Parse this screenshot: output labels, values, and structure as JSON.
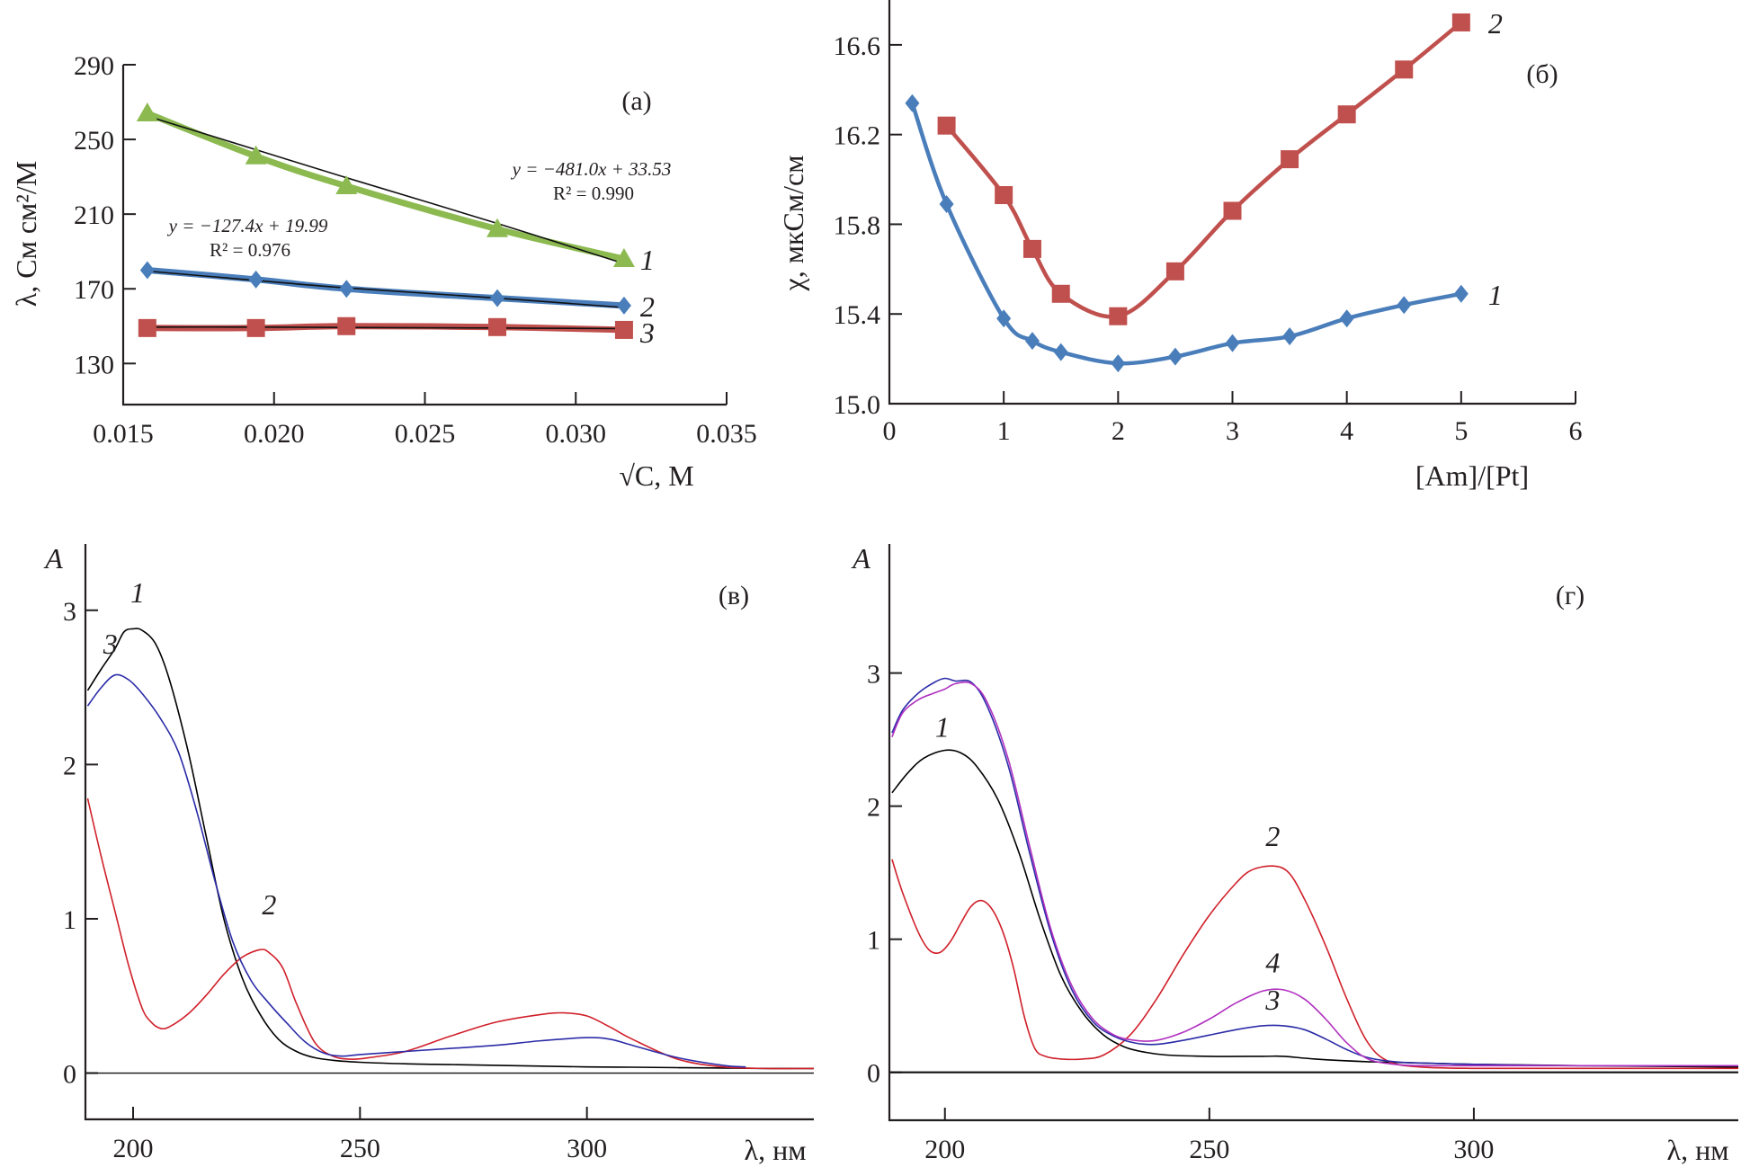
{
  "chart_data": [
    {
      "id": "a",
      "type": "line",
      "panel_label": "(а)",
      "xlabel": "√C, М",
      "ylabel": "λ, См см²/М",
      "xlim": [
        0.015,
        0.035
      ],
      "ylim": [
        108,
        290
      ],
      "xticks": [
        0.015,
        0.02,
        0.025,
        0.03,
        0.035
      ],
      "xtick_labels": [
        "0.015",
        "0.020",
        "0.025",
        "0.030",
        "0.035"
      ],
      "yticks": [
        130,
        170,
        210,
        250,
        290
      ],
      "ytick_labels": [
        "130",
        "170",
        "210",
        "250",
        "290"
      ],
      "x": [
        0.0158,
        0.0194,
        0.0224,
        0.0274,
        0.0316
      ],
      "series": [
        {
          "name": "1",
          "marker": "triangle",
          "color": "#8cba50",
          "values": [
            264,
            241,
            225,
            202,
            186
          ],
          "trend": [
            262.5,
            244.5,
            229.5,
            205,
            183.5
          ]
        },
        {
          "name": "2",
          "marker": "diamond",
          "color": "#4a7ebb",
          "values": [
            180,
            175,
            170,
            165,
            161
          ],
          "trend": [
            179.5,
            174.5,
            170.5,
            165,
            160
          ]
        },
        {
          "name": "3",
          "marker": "square",
          "color": "#c0504d",
          "values": [
            149,
            149,
            150,
            149.5,
            148
          ],
          "trend": [
            149.5,
            149.5,
            149.3,
            149,
            148.7
          ]
        }
      ],
      "annotations": [
        {
          "line1": "y = −481.0x + 33.53",
          "line2": "R² = 0.990"
        },
        {
          "line1": "y = −127.4x + 19.99",
          "line2": "R² = 0.976"
        }
      ],
      "grid": false
    },
    {
      "id": "b",
      "type": "line",
      "panel_label": "(б)",
      "xlabel": "[Am]/[Pt]",
      "ylabel": "χ, мкСм/см",
      "xlim": [
        0,
        6
      ],
      "ylim": [
        15.0,
        16.8
      ],
      "xticks": [
        0,
        1,
        2,
        3,
        4,
        5,
        6
      ],
      "xtick_labels": [
        "0",
        "1",
        "2",
        "3",
        "4",
        "5",
        "6"
      ],
      "yticks": [
        15.0,
        15.4,
        15.8,
        16.2,
        16.6
      ],
      "ytick_labels": [
        "15.0",
        "15.4",
        "15.8",
        "16.2",
        "16.6"
      ],
      "series": [
        {
          "name": "1",
          "marker": "diamond",
          "color": "#4a7ebb",
          "x": [
            0.2,
            0.5,
            1,
            1.25,
            1.5,
            2,
            2.5,
            3,
            3.5,
            4,
            4.5,
            5
          ],
          "values": [
            16.34,
            15.89,
            15.38,
            15.28,
            15.23,
            15.18,
            15.21,
            15.27,
            15.3,
            15.38,
            15.44,
            15.49
          ]
        },
        {
          "name": "2",
          "marker": "square",
          "color": "#c0504d",
          "x": [
            0.5,
            1,
            1.25,
            1.5,
            2,
            2.5,
            3,
            3.5,
            4,
            4.5,
            5
          ],
          "values": [
            16.24,
            15.93,
            15.69,
            15.49,
            15.39,
            15.59,
            15.86,
            16.09,
            16.29,
            16.49,
            16.7
          ]
        }
      ],
      "grid": false
    },
    {
      "id": "c",
      "type": "line",
      "panel_label": "(в)",
      "xlabel": "λ, нм",
      "ylabel": "A",
      "xlim": [
        189.5,
        350
      ],
      "ylim": [
        -0.3,
        3.43
      ],
      "xticks": [
        200,
        250,
        300
      ],
      "xtick_labels": [
        "200",
        "250",
        "300"
      ],
      "yticks": [
        0,
        1,
        2,
        3
      ],
      "ytick_labels": [
        "0",
        "1",
        "2",
        "3"
      ],
      "series": [
        {
          "name": "1",
          "color": "#000000",
          "x": [
            190,
            193,
            196,
            198,
            200,
            202,
            205,
            208,
            212,
            216,
            220,
            224,
            228,
            232,
            236,
            240,
            245,
            250,
            260,
            270,
            280,
            290,
            300,
            310,
            320,
            330,
            340,
            350
          ],
          "values": [
            2.48,
            2.62,
            2.75,
            2.86,
            2.88,
            2.87,
            2.78,
            2.55,
            2.1,
            1.55,
            1.0,
            0.62,
            0.38,
            0.22,
            0.14,
            0.1,
            0.08,
            0.07,
            0.06,
            0.055,
            0.05,
            0.045,
            0.04,
            0.038,
            0.035,
            0.033,
            0.03,
            0.03
          ]
        },
        {
          "name": "2",
          "color": "#d0202a",
          "x": [
            190,
            193,
            196,
            199,
            202,
            204,
            206,
            208,
            212,
            216,
            220,
            224,
            228,
            230,
            233,
            236,
            240,
            244,
            248,
            252,
            260,
            270,
            280,
            290,
            295,
            300,
            305,
            310,
            320,
            330,
            340,
            350
          ],
          "values": [
            1.78,
            1.4,
            1.05,
            0.7,
            0.42,
            0.33,
            0.29,
            0.3,
            0.38,
            0.5,
            0.64,
            0.75,
            0.8,
            0.78,
            0.68,
            0.45,
            0.2,
            0.11,
            0.09,
            0.1,
            0.14,
            0.24,
            0.33,
            0.38,
            0.39,
            0.37,
            0.3,
            0.22,
            0.09,
            0.04,
            0.03,
            0.03
          ]
        },
        {
          "name": "3",
          "color": "#2b2ba8",
          "x": [
            190,
            193,
            196,
            199,
            202,
            206,
            210,
            214,
            218,
            222,
            226,
            230,
            234,
            238,
            242,
            246,
            250,
            260,
            270,
            280,
            290,
            300,
            305,
            310,
            320,
            330,
            335
          ],
          "values": [
            2.38,
            2.5,
            2.58,
            2.55,
            2.46,
            2.3,
            2.08,
            1.7,
            1.25,
            0.85,
            0.6,
            0.45,
            0.32,
            0.2,
            0.13,
            0.11,
            0.12,
            0.14,
            0.16,
            0.18,
            0.21,
            0.23,
            0.22,
            0.18,
            0.1,
            0.05,
            0.04
          ]
        }
      ],
      "curve_labels": [
        {
          "series": "1",
          "text": "1",
          "x": 201,
          "y": 3.05
        },
        {
          "series": "3",
          "text": "3",
          "x": 195,
          "y": 2.72
        },
        {
          "series": "2",
          "text": "2",
          "x": 230,
          "y": 1.03
        }
      ],
      "baseline": 0,
      "grid": false
    },
    {
      "id": "d",
      "type": "line",
      "panel_label": "(г)",
      "xlabel": "λ, нм",
      "ylabel": "A",
      "xlim": [
        189.5,
        350
      ],
      "ylim": [
        -0.36,
        3.97
      ],
      "xticks": [
        200,
        250,
        300
      ],
      "xtick_labels": [
        "200",
        "250",
        "300"
      ],
      "yticks": [
        0,
        1,
        2,
        3
      ],
      "ytick_labels": [
        "0",
        "1",
        "2",
        "3"
      ],
      "series": [
        {
          "name": "1",
          "color": "#000000",
          "x": [
            190,
            193,
            196,
            200,
            203,
            206,
            210,
            214,
            218,
            222,
            226,
            230,
            234,
            238,
            242,
            250,
            260,
            264,
            270,
            280,
            290,
            300,
            320,
            350
          ],
          "values": [
            2.1,
            2.25,
            2.36,
            2.42,
            2.4,
            2.3,
            2.05,
            1.65,
            1.15,
            0.72,
            0.45,
            0.28,
            0.19,
            0.15,
            0.13,
            0.12,
            0.12,
            0.12,
            0.1,
            0.08,
            0.07,
            0.06,
            0.05,
            0.04
          ]
        },
        {
          "name": "2",
          "color": "#d0202a",
          "x": [
            190,
            192,
            195,
            197,
            199,
            201,
            203,
            205,
            207,
            209,
            211,
            213,
            215,
            217,
            219,
            222,
            226,
            230,
            235,
            240,
            245,
            250,
            255,
            258,
            262,
            265,
            268,
            272,
            276,
            280,
            284,
            290,
            300,
            320,
            350
          ],
          "values": [
            1.6,
            1.35,
            1.05,
            0.92,
            0.9,
            0.98,
            1.12,
            1.25,
            1.29,
            1.22,
            1.05,
            0.78,
            0.42,
            0.18,
            0.12,
            0.1,
            0.1,
            0.13,
            0.28,
            0.55,
            0.88,
            1.18,
            1.42,
            1.52,
            1.55,
            1.5,
            1.3,
            0.95,
            0.55,
            0.22,
            0.08,
            0.04,
            0.03,
            0.03,
            0.03
          ]
        },
        {
          "name": "3",
          "color": "#2b2ba8",
          "x": [
            190,
            192,
            195,
            198,
            200,
            202,
            205,
            208,
            212,
            216,
            220,
            224,
            228,
            232,
            236,
            240,
            245,
            250,
            255,
            260,
            264,
            268,
            272,
            276,
            280,
            285,
            290,
            300,
            320,
            350
          ],
          "values": [
            2.55,
            2.72,
            2.85,
            2.93,
            2.96,
            2.94,
            2.93,
            2.75,
            2.3,
            1.65,
            1.05,
            0.62,
            0.38,
            0.27,
            0.22,
            0.21,
            0.24,
            0.28,
            0.32,
            0.35,
            0.35,
            0.32,
            0.25,
            0.17,
            0.11,
            0.08,
            0.07,
            0.06,
            0.05,
            0.05
          ]
        },
        {
          "name": "4",
          "color": "#b030c0",
          "x": [
            190,
            192,
            195,
            198,
            200,
            202,
            205,
            208,
            212,
            216,
            220,
            224,
            228,
            232,
            236,
            240,
            245,
            250,
            255,
            260,
            264,
            268,
            272,
            276,
            280,
            285,
            290,
            300,
            320,
            350
          ],
          "values": [
            2.52,
            2.7,
            2.8,
            2.85,
            2.88,
            2.92,
            2.92,
            2.78,
            2.35,
            1.7,
            1.08,
            0.65,
            0.4,
            0.28,
            0.24,
            0.24,
            0.3,
            0.4,
            0.52,
            0.61,
            0.62,
            0.55,
            0.4,
            0.22,
            0.1,
            0.06,
            0.05,
            0.05,
            0.05,
            0.05
          ]
        }
      ],
      "curve_labels": [
        {
          "series": "1",
          "text": "1",
          "x": 199.5,
          "y": 2.52
        },
        {
          "series": "2",
          "text": "2",
          "x": 262,
          "y": 1.7
        },
        {
          "series": "4",
          "text": "4",
          "x": 262,
          "y": 0.75
        },
        {
          "series": "3",
          "text": "3",
          "x": 262,
          "y": 0.47
        }
      ],
      "baseline": 0,
      "grid": false
    }
  ]
}
